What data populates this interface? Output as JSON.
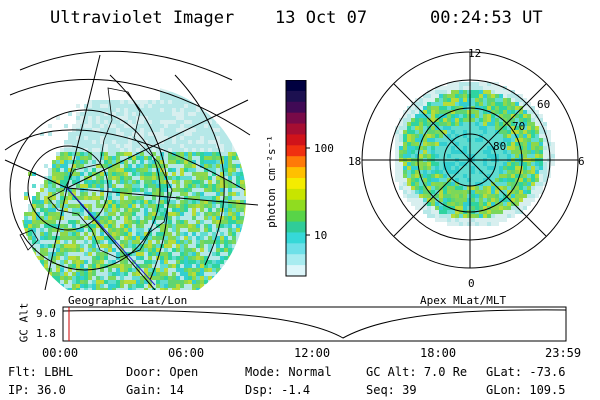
{
  "header": {
    "title": "Ultraviolet Imager",
    "date": "13 Oct 07",
    "time": "00:24:53 UT"
  },
  "left_map": {
    "label": "Geographic Lat/Lon",
    "palette": [
      "#d8efef",
      "#b6e8e8",
      "#60dcd0",
      "#33cfd0",
      "#2fd4a0",
      "#5fd570",
      "#8ed84b",
      "#7bd85a",
      "#b8dc38"
    ]
  },
  "right_map": {
    "label": "Apex MLat/MLT",
    "mlt_labels": [
      "12",
      "18",
      "6",
      "0"
    ],
    "mlat_labels": [
      "60",
      "70",
      "80"
    ]
  },
  "colorbar": {
    "unit_label": "photon cm⁻²s⁻¹",
    "ticks": [
      "100",
      "10"
    ],
    "colors": [
      "#000040",
      "#1c1050",
      "#400a55",
      "#780a48",
      "#a60e32",
      "#d0131a",
      "#f03010",
      "#ff7a08",
      "#ffc000",
      "#f4ec00",
      "#c8e400",
      "#90dc20",
      "#58d448",
      "#30cc98",
      "#36d8d8",
      "#6ee0e8",
      "#a8ecf0",
      "#ddf6fa"
    ]
  },
  "timeline": {
    "y_label": "GC Alt",
    "y_ticks": [
      "9.0",
      "1.8"
    ],
    "x_ticks": [
      "00:00",
      "06:00",
      "12:00",
      "18:00",
      "23:59"
    ],
    "marker_color": "#cc0000"
  },
  "info": {
    "row1": [
      {
        "label": "Flt:",
        "value": "LBHL"
      },
      {
        "label": "Door:",
        "value": "Open"
      },
      {
        "label": "Mode:",
        "value": "Normal"
      },
      {
        "label": "GC Alt:",
        "value": "7.0 Re"
      },
      {
        "label": "GLat:",
        "value": "-73.6"
      }
    ],
    "row2": [
      {
        "label": "IP:",
        "value": "36.0"
      },
      {
        "label": "Gain:",
        "value": "14"
      },
      {
        "label": "Dsp:",
        "value": "-1.4"
      },
      {
        "label": "Seq:",
        "value": "39"
      },
      {
        "label": "GLon:",
        "value": "109.5"
      }
    ]
  }
}
